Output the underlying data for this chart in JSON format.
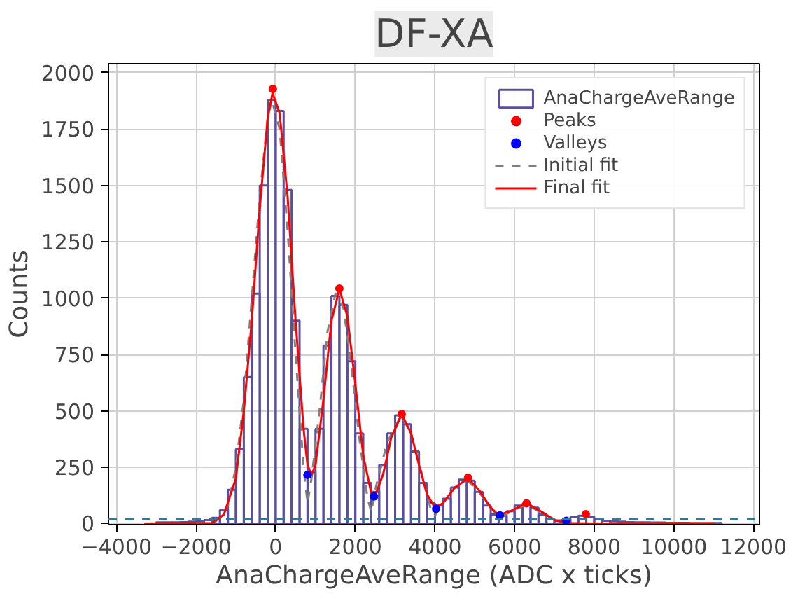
{
  "chart_data": {
    "type": "histogram",
    "title": "DF-XA",
    "xlabel": "AnaChargeAveRange (ADC x ticks)",
    "ylabel": "Counts",
    "xlim": [
      -4200,
      12150
    ],
    "ylim": [
      -5,
      2040
    ],
    "xticks": [
      -4000,
      -2000,
      0,
      2000,
      4000,
      6000,
      8000,
      10000,
      12000
    ],
    "yticks": [
      0,
      250,
      500,
      750,
      1000,
      1250,
      1500,
      1750,
      2000
    ],
    "grid": true,
    "legend": "top right",
    "bins": [
      -3000,
      -2800,
      -2600,
      -2400,
      -2200,
      -2000,
      -1800,
      -1600,
      -1400,
      -1200,
      -1000,
      -800,
      -600,
      -400,
      -200,
      0,
      200,
      400,
      600,
      800,
      1000,
      1200,
      1400,
      1600,
      1800,
      2000,
      2200,
      2400,
      2600,
      2800,
      3000,
      3200,
      3400,
      3600,
      3800,
      4000,
      4200,
      4400,
      4600,
      4800,
      5000,
      5200,
      5400,
      5600,
      5800,
      6000,
      6200,
      6400,
      6600,
      6800,
      7000,
      7200,
      7400,
      7600,
      7800,
      8000,
      8200,
      8400,
      8600,
      8800,
      9000,
      9200,
      9400,
      9600,
      9800,
      10000,
      10200,
      10400,
      10600,
      10800,
      11000,
      11200
    ],
    "ref_lines": [
      {
        "axis": "y",
        "value": 20,
        "color": "#2b7a99",
        "line_style": "dashed"
      }
    ],
    "series": [
      {
        "name": "AnaChargeAveRange",
        "color": "#5b4ea0",
        "values": [
          5,
          5,
          5,
          6,
          8,
          10,
          15,
          25,
          60,
          150,
          330,
          650,
          1020,
          1500,
          1880,
          1830,
          1480,
          900,
          420,
          230,
          420,
          790,
          1010,
          970,
          720,
          400,
          180,
          140,
          260,
          400,
          480,
          440,
          320,
          180,
          90,
          80,
          110,
          160,
          195,
          190,
          140,
          80,
          40,
          35,
          55,
          80,
          88,
          70,
          40,
          20,
          14,
          18,
          28,
          35,
          30,
          20,
          12,
          10,
          8,
          6,
          5,
          5,
          4,
          4,
          3,
          3,
          3,
          2,
          2,
          2,
          2
        ]
      },
      {
        "name": "Peaks",
        "type": "scatter",
        "marker": "circle",
        "color": "#ff0000",
        "x": [
          -70,
          1600,
          3165,
          4830,
          6300,
          7790
        ],
        "values": [
          1928,
          1042,
          485,
          203,
          90,
          42
        ]
      },
      {
        "name": "Valleys",
        "type": "scatter",
        "marker": "circle",
        "color": "#0000ff",
        "x": [
          800,
          2470,
          4030,
          5630,
          7300
        ],
        "values": [
          216,
          120,
          66,
          36,
          12
        ]
      },
      {
        "name": "Initial fit",
        "type": "line",
        "line_style": "dashed",
        "color": "#808080",
        "x": [
          -2000,
          -1500,
          -1200,
          -1000,
          -800,
          -600,
          -400,
          -200,
          -100,
          100,
          300,
          500,
          700,
          800,
          900,
          1100,
          1300,
          1500,
          1700,
          1900,
          2100,
          2300,
          2400,
          2500,
          2800,
          3150,
          3400,
          3700,
          3900,
          4000,
          4200,
          4500,
          4800,
          5100,
          5500,
          5700,
          6000,
          6300,
          6700,
          7100,
          7500
        ],
        "values": [
          0,
          10,
          80,
          250,
          550,
          1000,
          1450,
          1800,
          1880,
          1750,
          1300,
          750,
          250,
          90,
          200,
          500,
          850,
          1020,
          960,
          700,
          380,
          120,
          50,
          150,
          360,
          480,
          400,
          200,
          60,
          35,
          90,
          160,
          195,
          140,
          50,
          35,
          60,
          85,
          45,
          10,
          0
        ]
      },
      {
        "name": "Final fit",
        "type": "line",
        "line_style": "solid",
        "color": "#ff0000",
        "x": [
          -3300,
          -1600,
          -1300,
          -1000,
          -800,
          -600,
          -400,
          -200,
          -80,
          100,
          300,
          500,
          700,
          800,
          900,
          1000,
          1200,
          1400,
          1600,
          1800,
          2000,
          2200,
          2400,
          2500,
          2700,
          2900,
          3165,
          3400,
          3600,
          3800,
          4000,
          4200,
          4500,
          4830,
          5100,
          5400,
          5600,
          5900,
          6300,
          6700,
          7000,
          7300,
          8000,
          11000
        ],
        "values": [
          0,
          2,
          40,
          200,
          500,
          900,
          1400,
          1800,
          1910,
          1820,
          1450,
          900,
          420,
          260,
          215,
          260,
          550,
          900,
          1040,
          920,
          620,
          300,
          135,
          125,
          220,
          380,
          485,
          400,
          260,
          130,
          70,
          90,
          160,
          200,
          150,
          70,
          38,
          55,
          90,
          50,
          15,
          2,
          0,
          0
        ]
      }
    ]
  }
}
